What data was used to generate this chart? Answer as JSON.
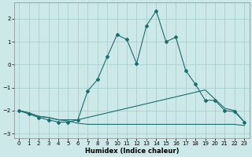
{
  "xlabel": "Humidex (Indice chaleur)",
  "background_color": "#cce8e8",
  "line_color": "#1a6e6e",
  "grid_color": "#aacfcf",
  "x_values": [
    0,
    1,
    2,
    3,
    4,
    5,
    6,
    7,
    8,
    9,
    10,
    11,
    12,
    13,
    14,
    15,
    16,
    17,
    18,
    19,
    20,
    21,
    22,
    23
  ],
  "series1": [
    -2.0,
    -2.15,
    -2.3,
    -2.4,
    -2.5,
    -2.5,
    -2.4,
    -1.15,
    -0.65,
    0.35,
    1.3,
    1.1,
    0.05,
    1.7,
    2.35,
    1.0,
    1.2,
    -0.25,
    -0.85,
    -1.55,
    -1.55,
    -2.0,
    -2.05,
    -2.5
  ],
  "series2": [
    -2.0,
    -2.1,
    -2.25,
    -2.3,
    -2.4,
    -2.4,
    -2.4,
    -2.3,
    -2.2,
    -2.1,
    -2.0,
    -1.9,
    -1.8,
    -1.7,
    -1.6,
    -1.5,
    -1.4,
    -1.3,
    -1.2,
    -1.1,
    -1.5,
    -1.9,
    -2.0,
    -2.5
  ],
  "series3": [
    -2.0,
    -2.1,
    -2.25,
    -2.3,
    -2.4,
    -2.45,
    -2.55,
    -2.6,
    -2.6,
    -2.6,
    -2.6,
    -2.6,
    -2.6,
    -2.6,
    -2.6,
    -2.6,
    -2.6,
    -2.6,
    -2.6,
    -2.6,
    -2.6,
    -2.6,
    -2.6,
    -2.65
  ],
  "ylim": [
    -3.2,
    2.7
  ],
  "xlim": [
    -0.5,
    23.5
  ],
  "yticks": [
    -3,
    -2,
    -1,
    0,
    1,
    2
  ],
  "xticks": [
    0,
    1,
    2,
    3,
    4,
    5,
    6,
    7,
    8,
    9,
    10,
    11,
    12,
    13,
    14,
    15,
    16,
    17,
    18,
    19,
    20,
    21,
    22,
    23
  ]
}
